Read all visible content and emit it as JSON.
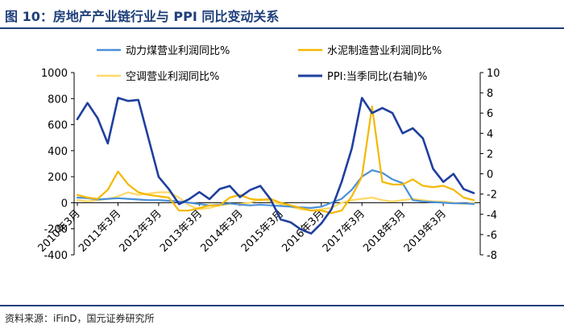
{
  "title": "图 10：房地产产业链行业与 PPI 同比变动关系",
  "source": "资料来源：iFinD，国元证券研究所",
  "chart_data": {
    "type": "line",
    "title": "房地产产业链行业与PPI同比变动关系",
    "x": [
      "2010年3月",
      "2010年6月",
      "2010年9月",
      "2010年12月",
      "2011年3月",
      "2011年6月",
      "2011年9月",
      "2011年12月",
      "2012年3月",
      "2012年6月",
      "2012年9月",
      "2012年12月",
      "2013年3月",
      "2013年6月",
      "2013年9月",
      "2013年12月",
      "2014年3月",
      "2014年6月",
      "2014年9月",
      "2014年12月",
      "2015年3月",
      "2015年6月",
      "2015年9月",
      "2015年12月",
      "2016年3月",
      "2016年6月",
      "2016年9月",
      "2016年12月",
      "2017年3月",
      "2017年6月",
      "2017年9月",
      "2017年12月",
      "2018年3月",
      "2018年6月",
      "2018年9月",
      "2018年12月",
      "2019年3月",
      "2019年6月",
      "2019年9月",
      "2019年12月"
    ],
    "x_tick_labels": [
      "2010年3月",
      "2011年3月",
      "2012年3月",
      "2013年3月",
      "2014年3月",
      "2015年3月",
      "2016年3月",
      "2017年3月",
      "2018年3月",
      "2019年3月"
    ],
    "y_left": {
      "min": -400,
      "max": 1000,
      "ticks": [
        -400,
        -200,
        0,
        200,
        400,
        600,
        800,
        1000
      ]
    },
    "y_right": {
      "min": -8,
      "max": 10,
      "ticks": [
        -8,
        -6,
        -4,
        -2,
        0,
        2,
        4,
        6,
        8,
        10
      ]
    },
    "series": [
      {
        "name": "动力煤营业利润同比%",
        "axis": "left",
        "color": "#4a90d9",
        "values": [
          40,
          35,
          25,
          30,
          35,
          30,
          25,
          20,
          20,
          15,
          10,
          0,
          -10,
          -20,
          -15,
          -5,
          -15,
          -20,
          -15,
          -20,
          -25,
          -30,
          -35,
          -40,
          -30,
          0,
          30,
          100,
          200,
          250,
          230,
          180,
          150,
          20,
          10,
          5,
          0,
          -5,
          -5,
          -10
        ]
      },
      {
        "name": "水泥制造营业利润同比%",
        "axis": "left",
        "color": "#f5b800",
        "values": [
          60,
          40,
          30,
          100,
          240,
          140,
          80,
          60,
          50,
          40,
          -60,
          -60,
          -40,
          -20,
          -20,
          40,
          60,
          30,
          20,
          30,
          0,
          -20,
          -40,
          -60,
          -60,
          -80,
          -60,
          50,
          200,
          740,
          160,
          140,
          140,
          180,
          130,
          120,
          130,
          100,
          40,
          20
        ]
      },
      {
        "name": "空调营业利润同比%",
        "axis": "left",
        "color": "#ffd966",
        "values": [
          20,
          10,
          20,
          30,
          50,
          80,
          60,
          70,
          80,
          80,
          40,
          -20,
          -50,
          -40,
          -20,
          -10,
          -10,
          0,
          30,
          10,
          -10,
          -30,
          -50,
          -60,
          -50,
          -40,
          0,
          20,
          30,
          40,
          20,
          10,
          20,
          30,
          20,
          10,
          10,
          0,
          -10,
          0
        ]
      },
      {
        "name": "PPI:当季同比(右轴)%",
        "axis": "right",
        "color": "#1f3f9f",
        "values": [
          5.4,
          7.0,
          5.5,
          3.0,
          7.5,
          7.2,
          7.3,
          3.5,
          -0.3,
          -1.5,
          -3.0,
          -2.5,
          -1.8,
          -2.5,
          -1.5,
          -1.2,
          -2.3,
          -1.6,
          -1.2,
          -2.5,
          -4.5,
          -4.8,
          -5.5,
          -5.9,
          -4.9,
          -3.5,
          -0.8,
          2.5,
          7.5,
          6.0,
          6.5,
          6.0,
          4.0,
          4.5,
          3.5,
          0.5,
          -0.8,
          0.0,
          -1.5,
          -1.9
        ]
      }
    ],
    "legend_position": "top",
    "grid": false
  }
}
